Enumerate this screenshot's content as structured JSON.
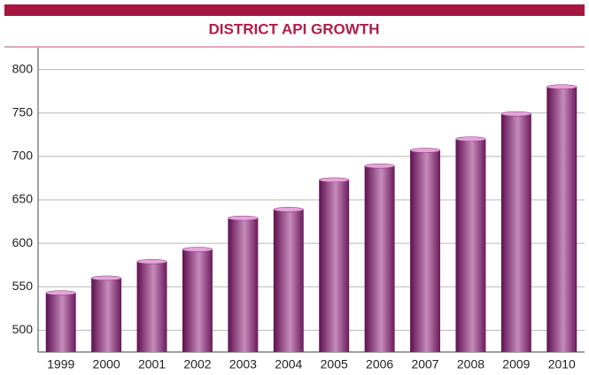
{
  "chart_data": {
    "type": "bar",
    "title": "DISTRICT API GROWTH",
    "categories": [
      "1999",
      "2000",
      "2001",
      "2002",
      "2003",
      "2004",
      "2005",
      "2006",
      "2007",
      "2008",
      "2009",
      "2010"
    ],
    "values": [
      543,
      560,
      579,
      593,
      629,
      639,
      673,
      689,
      707,
      720,
      749,
      780
    ],
    "color": "#8e2a7c",
    "ylim": [
      475,
      825
    ],
    "yticks": [
      500,
      550,
      600,
      650,
      700,
      750,
      800
    ],
    "grid": true
  }
}
